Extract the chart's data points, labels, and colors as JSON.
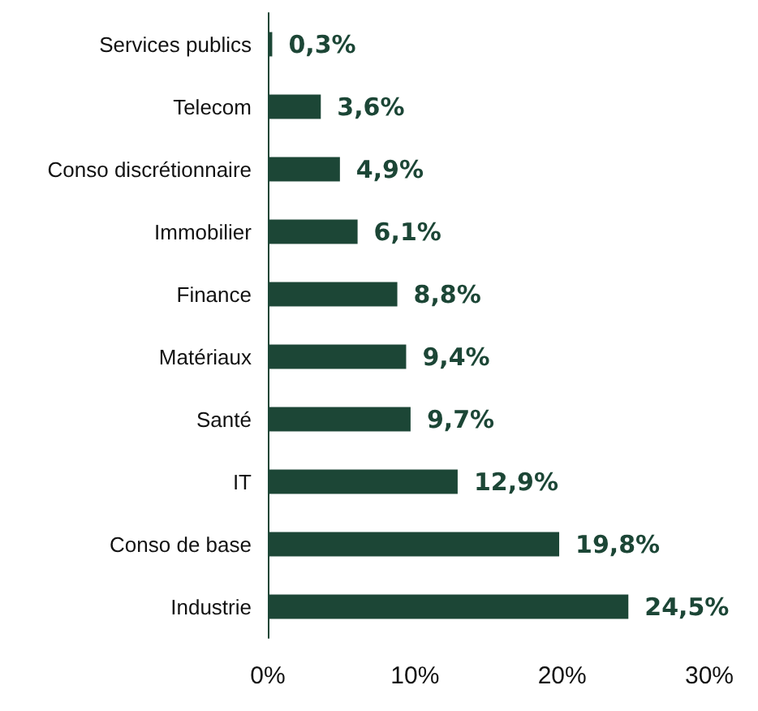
{
  "chart_data": {
    "type": "bar",
    "orientation": "horizontal",
    "categories": [
      "Services publics",
      "Telecom",
      "Conso discrétionnaire",
      "Immobilier",
      "Finance",
      "Matériaux",
      "Santé",
      "IT",
      "Conso de base",
      "Industrie"
    ],
    "values": [
      0.3,
      3.6,
      4.9,
      6.1,
      8.8,
      9.4,
      9.7,
      12.9,
      19.8,
      24.5
    ],
    "value_labels": [
      "0,3%",
      "3,6%",
      "4,9%",
      "6,1%",
      "8,8%",
      "9,4%",
      "9,7%",
      "12,9%",
      "19,8%",
      "24,5%"
    ],
    "color": "#1c4636",
    "xlim": [
      0,
      30
    ],
    "xticks": [
      {
        "value": 0,
        "label": "0%"
      },
      {
        "value": 10,
        "label": "10%"
      },
      {
        "value": 20,
        "label": "20%"
      },
      {
        "value": 30,
        "label": "30%"
      }
    ],
    "grid": false
  }
}
